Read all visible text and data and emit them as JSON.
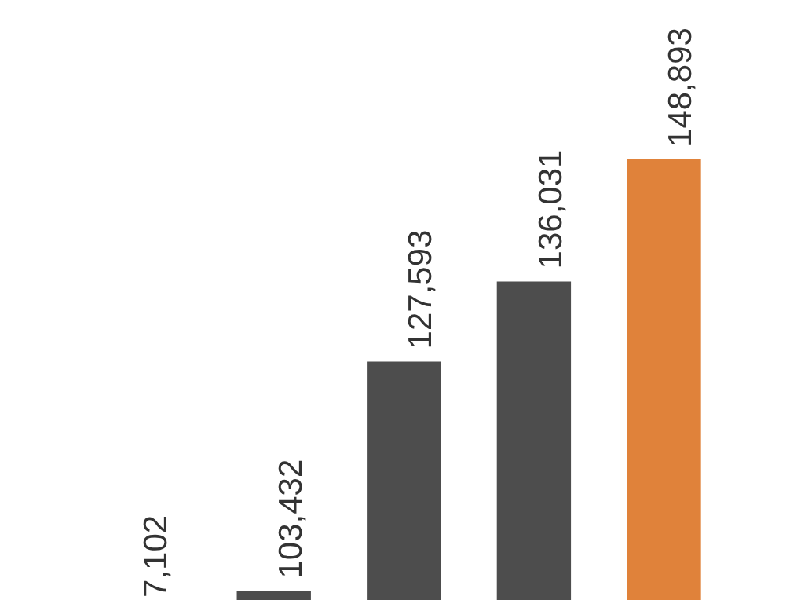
{
  "chart_data": {
    "type": "bar",
    "categories": [
      null,
      null,
      null,
      null
    ],
    "values": [
      103432,
      127593,
      136031,
      148893
    ],
    "colors": [
      "#4d4d4d",
      "#4d4d4d",
      "#4d4d4d",
      "#e0823a"
    ],
    "value_labels": [
      "103,432",
      "127,593",
      "136,031",
      "148,893"
    ],
    "annotations": [
      "7,102"
    ],
    "ylim": [
      102400,
      165600
    ],
    "tick_labels": false
  }
}
